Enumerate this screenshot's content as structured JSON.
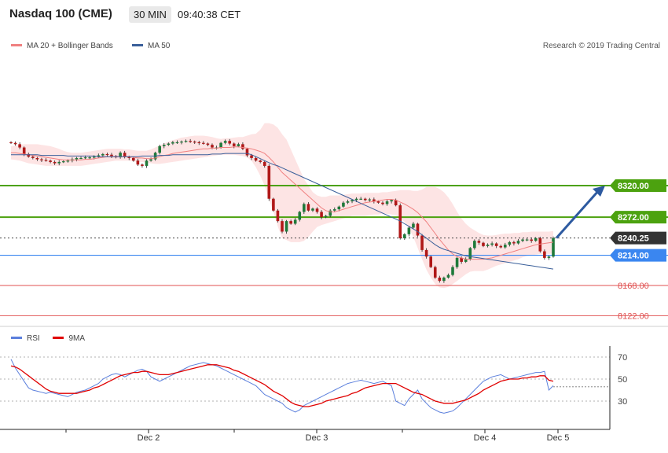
{
  "header": {
    "title": "Nasdaq 100 (CME)",
    "timeframe": "30 MIN",
    "time": "09:40:38 CET"
  },
  "legend": {
    "ma20_label": "MA 20 + Bollinger Bands",
    "ma50_label": "MA 50",
    "ma20_color": "#f08080",
    "ma50_color": "#3a5f9a"
  },
  "copyright": "Research © 2019 Trading Central",
  "colors": {
    "up": "#1f7a3a",
    "down": "#b01818",
    "band_fill": "#fde4e4",
    "green_level": "#4ca20f",
    "blue_level": "#3a86f0",
    "red_level": "#e05050",
    "arrow": "#2d5aa0",
    "rsi": "#5b7fdc",
    "ma9": "#e00000"
  },
  "chart_data": [
    {
      "type": "candlestick",
      "ylim": [
        8105,
        8420
      ],
      "price_levels": [
        {
          "value": 8320.0,
          "label": "8320.00",
          "kind": "resistance"
        },
        {
          "value": 8272.0,
          "label": "8272.00",
          "kind": "resistance"
        },
        {
          "value": 8240.25,
          "label": "8240.25",
          "kind": "last"
        },
        {
          "value": 8214.0,
          "label": "8214.00",
          "kind": "pivot"
        },
        {
          "value": 8168.0,
          "label": "8168.00",
          "kind": "support"
        },
        {
          "value": 8122.0,
          "label": "8122.00",
          "kind": "support"
        }
      ],
      "x_labels": [
        "Dec 2",
        "Dec 3",
        "Dec 4",
        "Dec 5"
      ],
      "close": [
        8385,
        8383,
        8378,
        8368,
        8364,
        8362,
        8360,
        8359,
        8358,
        8356,
        8354,
        8356,
        8357,
        8358,
        8360,
        8362,
        8362,
        8363,
        8363,
        8364,
        8366,
        8368,
        8367,
        8365,
        8363,
        8370,
        8364,
        8362,
        8358,
        8352,
        8350,
        8358,
        8360,
        8370,
        8380,
        8382,
        8384,
        8386,
        8386,
        8387,
        8388,
        8387,
        8386,
        8385,
        8384,
        8382,
        8378,
        8378,
        8385,
        8388,
        8384,
        8380,
        8383,
        8376,
        8366,
        8362,
        8358,
        8356,
        8350,
        8300,
        8282,
        8266,
        8250,
        8266,
        8262,
        8268,
        8280,
        8292,
        8282,
        8285,
        8280,
        8272,
        8274,
        8282,
        8284,
        8288,
        8294,
        8296,
        8298,
        8300,
        8300,
        8298,
        8299,
        8296,
        8294,
        8292,
        8296,
        8298,
        8290,
        8240,
        8246,
        8256,
        8262,
        8244,
        8222,
        8212,
        8196,
        8180,
        8175,
        8180,
        8184,
        8196,
        8210,
        8204,
        8208,
        8225,
        8236,
        8233,
        8228,
        8230,
        8232,
        8228,
        8226,
        8230,
        8234,
        8232,
        8236,
        8238,
        8238,
        8236,
        8240,
        8220,
        8210,
        8212,
        8240.25
      ],
      "ma20": [
        8370,
        8370,
        8369,
        8368,
        8367,
        8366,
        8365,
        8364,
        8363,
        8362,
        8361,
        8360,
        8359,
        8359,
        8359,
        8359,
        8359,
        8360,
        8360,
        8361,
        8362,
        8363,
        8364,
        8364,
        8364,
        8364,
        8364,
        8364,
        8363,
        8362,
        8362,
        8361,
        8361,
        8362,
        8364,
        8366,
        8367,
        8369,
        8370,
        8371,
        8372,
        8373,
        8374,
        8375,
        8376,
        8376,
        8377,
        8377,
        8378,
        8378,
        8378,
        8379,
        8379,
        8378,
        8377,
        8376,
        8374,
        8372,
        8369,
        8363,
        8356,
        8348,
        8340,
        8334,
        8328,
        8322,
        8316,
        8310,
        8304,
        8298,
        8292,
        8286,
        8282,
        8280,
        8280,
        8282,
        8284,
        8286,
        8288,
        8290,
        8292,
        8294,
        8295,
        8296,
        8297,
        8298,
        8299,
        8299,
        8298,
        8295,
        8292,
        8288,
        8284,
        8279,
        8272,
        8265,
        8256,
        8247,
        8238,
        8230,
        8222,
        8216,
        8212,
        8210,
        8208,
        8208,
        8208,
        8208,
        8208,
        8209,
        8210,
        8212,
        8214,
        8216,
        8218,
        8220,
        8222,
        8224,
        8226,
        8228,
        8230,
        8231,
        8232,
        8233,
        8234
      ],
      "bb_upper": [
        8380,
        8381,
        8382,
        8383,
        8383,
        8383,
        8383,
        8382,
        8381,
        8380,
        8378,
        8376,
        8373,
        8371,
        8370,
        8370,
        8370,
        8371,
        8372,
        8373,
        8374,
        8375,
        8376,
        8376,
        8376,
        8376,
        8375,
        8375,
        8374,
        8373,
        8373,
        8373,
        8375,
        8378,
        8381,
        8384,
        8387,
        8389,
        8391,
        8393,
        8394,
        8395,
        8396,
        8396,
        8396,
        8395,
        8394,
        8392,
        8391,
        8392,
        8392,
        8393,
        8394,
        8394,
        8396,
        8398,
        8399,
        8405,
        8415,
        8415,
        8413,
        8408,
        8398,
        8390,
        8375,
        8360,
        8345,
        8330,
        8320,
        8310,
        8305,
        8303,
        8303,
        8305,
        8305,
        8305,
        8306,
        8307,
        8308,
        8308,
        8308,
        8309,
        8309,
        8309,
        8309,
        8310,
        8310,
        8311,
        8312,
        8313,
        8313,
        8313,
        8312,
        8312,
        8314,
        8318,
        8318,
        8318,
        8315,
        8310,
        8302,
        8292,
        8280,
        8270,
        8262,
        8256,
        8252,
        8248,
        8245,
        8244,
        8244,
        8245,
        8246,
        8247,
        8247,
        8248,
        8248,
        8249,
        8249,
        8250,
        8250,
        8250,
        8250,
        8250,
        8251
      ],
      "bb_lower": [
        8360,
        8359,
        8358,
        8356,
        8354,
        8353,
        8352,
        8351,
        8350,
        8350,
        8350,
        8350,
        8350,
        8350,
        8350,
        8350,
        8350,
        8351,
        8352,
        8353,
        8354,
        8355,
        8356,
        8357,
        8358,
        8358,
        8358,
        8358,
        8357,
        8356,
        8356,
        8355,
        8354,
        8353,
        8353,
        8354,
        8355,
        8356,
        8357,
        8358,
        8359,
        8360,
        8361,
        8362,
        8363,
        8364,
        8365,
        8366,
        8367,
        8367,
        8367,
        8367,
        8366,
        8365,
        8363,
        8358,
        8348,
        8335,
        8320,
        8300,
        8280,
        8258,
        8240,
        8237,
        8234,
        8234,
        8234,
        8236,
        8242,
        8250,
        8257,
        8260,
        8262,
        8264,
        8266,
        8268,
        8270,
        8272,
        8274,
        8274,
        8274,
        8274,
        8275,
        8276,
        8276,
        8277,
        8277,
        8276,
        8275,
        8270,
        8265,
        8255,
        8242,
        8225,
        8208,
        8192,
        8180,
        8170,
        8165,
        8164,
        8166,
        8170,
        8175,
        8180,
        8185,
        8189,
        8190,
        8190,
        8190,
        8192,
        8195,
        8198,
        8200,
        8202,
        8204,
        8206,
        8208,
        8211,
        8213,
        8214,
        8215,
        8216,
        8216,
        8216,
        8217
      ],
      "ma50": [
        8367,
        8367,
        8367,
        8367,
        8367,
        8367,
        8367,
        8366,
        8366,
        8366,
        8366,
        8366,
        8366,
        8365,
        8365,
        8365,
        8365,
        8365,
        8365,
        8365,
        8364,
        8364,
        8364,
        8364,
        8364,
        8364,
        8364,
        8364,
        8364,
        8364,
        8365,
        8365,
        8365,
        8365,
        8366,
        8366,
        8366,
        8367,
        8367,
        8367,
        8367,
        8367,
        8367,
        8367,
        8367,
        8367,
        8368,
        8368,
        8368,
        8369,
        8369,
        8369,
        8369,
        8369,
        8369,
        8367,
        8364,
        8361,
        8358,
        8355,
        8352,
        8350,
        8347,
        8344,
        8341,
        8338,
        8335,
        8332,
        8329,
        8326,
        8323,
        8320,
        8317,
        8314,
        8311,
        8308,
        8305,
        8302,
        8299,
        8296,
        8293,
        8290,
        8287,
        8284,
        8281,
        8278,
        8275,
        8272,
        8269,
        8266,
        8262,
        8258,
        8254,
        8250,
        8245,
        8240,
        8235,
        8230,
        8226,
        8223,
        8221,
        8219,
        8217,
        8215,
        8213,
        8212,
        8211,
        8210,
        8209,
        8208,
        8207,
        8206,
        8205,
        8204,
        8203,
        8202,
        8201,
        8200,
        8199,
        8198,
        8197,
        8196,
        8195,
        8194,
        8193
      ]
    },
    {
      "type": "line",
      "title": "RSI",
      "ylim": [
        20,
        85
      ],
      "yticks": [
        70,
        50,
        30
      ],
      "reference_line": 43,
      "series": [
        {
          "name": "RSI",
          "values": [
            68,
            60,
            54,
            48,
            42,
            40,
            39,
            38,
            37,
            38,
            37,
            36,
            35,
            34,
            36,
            38,
            39,
            40,
            42,
            44,
            46,
            50,
            52,
            54,
            55,
            54,
            52,
            54,
            56,
            58,
            59,
            57,
            52,
            50,
            48,
            50,
            52,
            54,
            56,
            58,
            60,
            62,
            63,
            64,
            65,
            64,
            63,
            62,
            60,
            58,
            56,
            54,
            52,
            50,
            48,
            46,
            44,
            40,
            36,
            34,
            32,
            30,
            28,
            24,
            22,
            20,
            22,
            26,
            28,
            30,
            32,
            34,
            36,
            38,
            40,
            42,
            44,
            46,
            47,
            48,
            49,
            48,
            47,
            46,
            47,
            48,
            46,
            44,
            30,
            28,
            26,
            32,
            36,
            40,
            32,
            28,
            24,
            22,
            20,
            19,
            20,
            21,
            24,
            28,
            32,
            36,
            40,
            44,
            48,
            50,
            52,
            53,
            54,
            52,
            50,
            51,
            52,
            53,
            54,
            55,
            56,
            56,
            57,
            40,
            44
          ]
        },
        {
          "name": "9MA",
          "values": [
            62,
            61,
            59,
            56,
            53,
            50,
            47,
            44,
            41,
            39,
            38,
            37,
            37,
            37,
            37,
            37,
            38,
            39,
            40,
            42,
            43,
            45,
            47,
            49,
            51,
            53,
            54,
            55,
            56,
            56,
            57,
            57,
            56,
            55,
            54,
            54,
            54,
            55,
            56,
            57,
            58,
            59,
            60,
            61,
            62,
            63,
            63,
            63,
            62,
            61,
            60,
            58,
            57,
            55,
            53,
            51,
            49,
            47,
            45,
            42,
            39,
            37,
            35,
            32,
            29,
            27,
            26,
            25,
            25,
            26,
            27,
            28,
            30,
            31,
            32,
            33,
            34,
            35,
            37,
            38,
            40,
            42,
            43,
            44,
            45,
            46,
            46,
            46,
            46,
            44,
            42,
            40,
            38,
            37,
            36,
            34,
            32,
            30,
            29,
            28,
            28,
            28,
            29,
            30,
            31,
            33,
            35,
            37,
            40,
            42,
            44,
            46,
            48,
            49,
            50,
            50,
            50,
            51,
            51,
            52,
            52,
            53,
            53,
            49,
            48
          ]
        }
      ],
      "x_labels": [
        "Dec 2",
        "Dec 3",
        "Dec 4",
        "Dec 5"
      ]
    }
  ],
  "rsi_legend": {
    "rsi_label": "RSI",
    "ma_label": "9MA"
  }
}
